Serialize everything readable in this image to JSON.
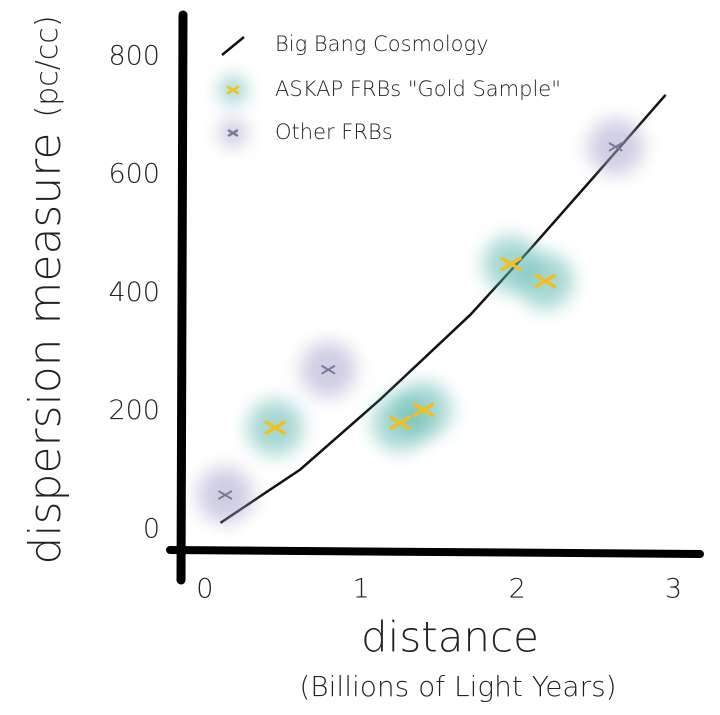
{
  "chart_data": {
    "type": "scatter",
    "ylabel": "dispersion measure",
    "ylabel_unit": "(pc/cc)",
    "xlabel": "distance",
    "xlabel_note": "(Billions of Light Years)",
    "xlim": [
      -0.14,
      3.17
    ],
    "ylim": [
      -34,
      871
    ],
    "xticks": [
      0,
      1,
      2,
      3
    ],
    "yticks": [
      0,
      200,
      400,
      600,
      800
    ],
    "grid": false,
    "legend": "top-left",
    "series": [
      {
        "name": "Big Bang Cosmology",
        "type": "line",
        "color": "#111111",
        "x": [
          0.1,
          0.61,
          1.12,
          1.7,
          2.08,
          2.53,
          2.95
        ],
        "values": [
          12,
          102,
          220,
          364,
          474,
          609,
          736
        ]
      },
      {
        "name": "ASKAP FRBs \"Gold Sample\"",
        "type": "scatter",
        "color": "#f0c020",
        "halo_color": "#5fb8b0",
        "x": [
          0.45,
          1.25,
          1.4,
          1.96,
          2.18
        ],
        "values": [
          173,
          181,
          203,
          450,
          421
        ]
      },
      {
        "name": "Other FRBs",
        "type": "scatter",
        "color": "#7a7a98",
        "halo_color": "#a9a6cc",
        "x": [
          0.13,
          0.79,
          2.63
        ],
        "values": [
          59,
          271,
          648
        ]
      }
    ]
  }
}
